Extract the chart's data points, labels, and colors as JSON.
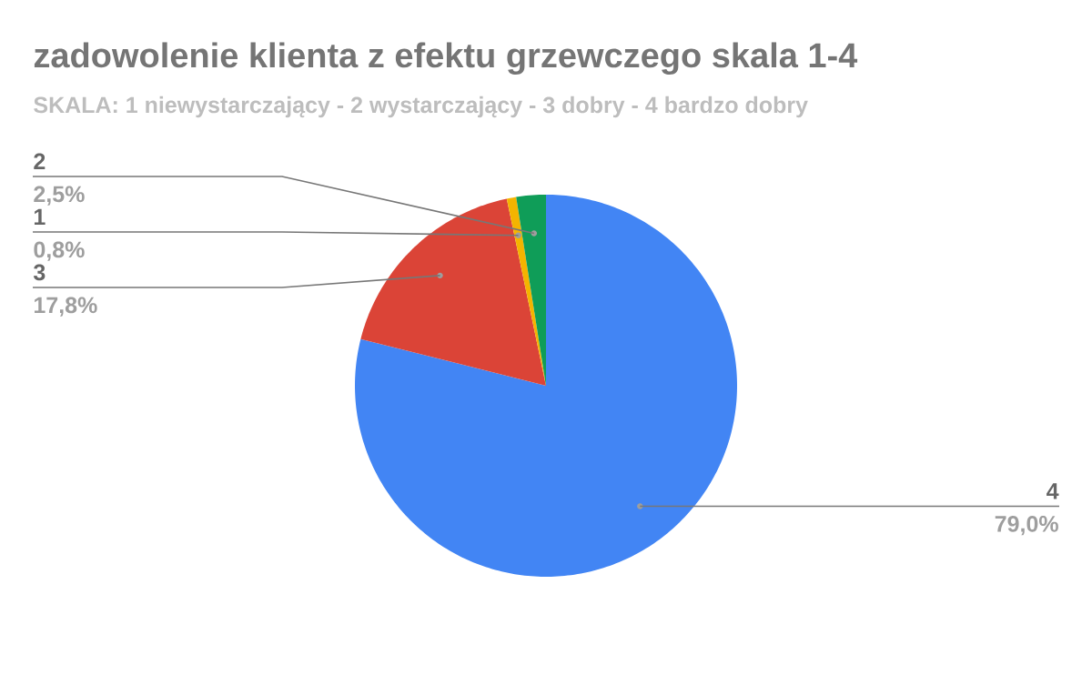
{
  "chart_data": {
    "type": "pie",
    "title": "zadowolenie klienta z efektu grzewczego skala 1-4",
    "subtitle": "SKALA: 1 niewystarczający - 2 wystarczający - 3 dobry - 4 bardzo dobry",
    "categories": [
      "4",
      "3",
      "1",
      "2"
    ],
    "values": [
      79.0,
      17.8,
      0.8,
      2.5
    ],
    "value_labels": [
      "79,0%",
      "17,8%",
      "0,8%",
      "2,5%"
    ],
    "colors": [
      "#4285f4",
      "#db4437",
      "#f4b400",
      "#0f9d58"
    ]
  }
}
